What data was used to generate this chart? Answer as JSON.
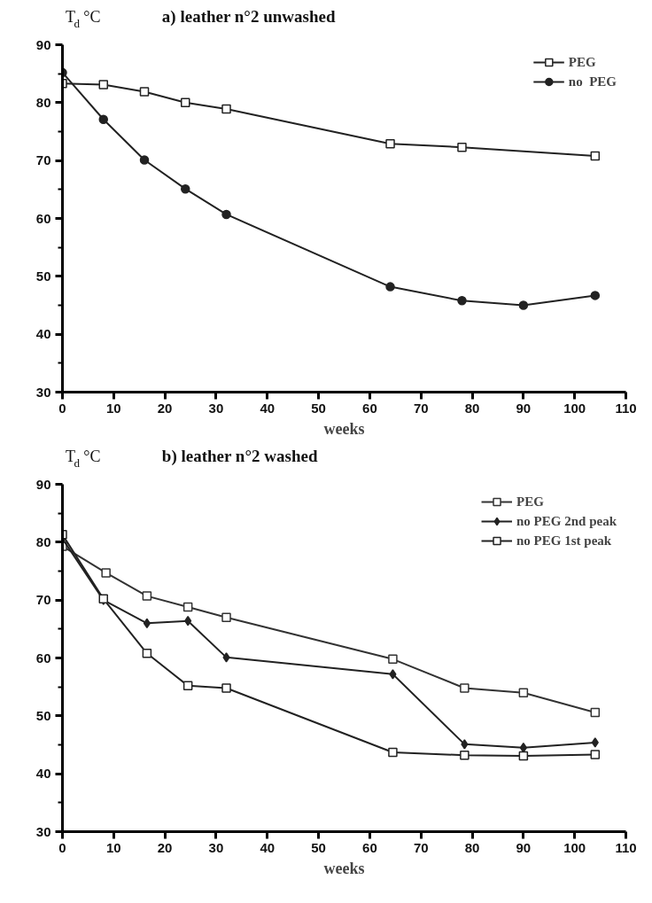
{
  "chart_data": [
    {
      "type": "line",
      "title": "a) leather n°2  unwashed",
      "ylabel": "T$_{d}$ °C",
      "xlabel": "weeks",
      "xlim": [
        0,
        110
      ],
      "ylim": [
        30,
        90
      ],
      "xticks": [
        0,
        10,
        20,
        30,
        40,
        50,
        60,
        70,
        80,
        90,
        100,
        110
      ],
      "yticks": [
        30,
        40,
        50,
        60,
        70,
        80,
        90
      ],
      "grid": false,
      "legend": "top right",
      "series": [
        {
          "name": "PEG",
          "color": "#222222",
          "marker": "square",
          "x": [
            0,
            8,
            16,
            24,
            32,
            64,
            78,
            104
          ],
          "values": [
            83.3,
            83.1,
            81.9,
            80,
            78.9,
            72.9,
            72.3,
            70.8
          ]
        },
        {
          "name": "no  PEG",
          "color": "#222222",
          "marker": "circle",
          "x": [
            0,
            8,
            16,
            24,
            32,
            64,
            78,
            90,
            104
          ],
          "values": [
            85.2,
            77.1,
            70.1,
            65.1,
            60.7,
            48.2,
            45.8,
            45.0,
            46.7
          ]
        }
      ]
    },
    {
      "type": "line",
      "title": "b) leather n°2  washed",
      "ylabel": "T$_{d}$ °C",
      "xlabel": "weeks",
      "xlim": [
        0,
        110
      ],
      "ylim": [
        30,
        90
      ],
      "xticks": [
        0,
        10,
        20,
        30,
        40,
        50,
        60,
        70,
        80,
        90,
        100,
        110
      ],
      "yticks": [
        30,
        40,
        50,
        60,
        70,
        80,
        90
      ],
      "grid": false,
      "legend": "top right",
      "series": [
        {
          "name": "PEG",
          "color": "#333333",
          "marker": "square",
          "x": [
            0,
            8.5,
            16.5,
            24.5,
            32,
            64.5,
            78.5,
            90,
            104
          ],
          "values": [
            79.3,
            74.7,
            70.7,
            68.8,
            67.0,
            59.8,
            54.8,
            54.0,
            50.6
          ]
        },
        {
          "name": "no PEG 2nd peak",
          "color": "#222222",
          "marker": "diamond",
          "x": [
            0,
            8,
            16.5,
            24.5,
            32,
            64.5,
            78.5,
            90,
            104
          ],
          "values": [
            80.6,
            70.0,
            66.0,
            66.4,
            60.1,
            57.2,
            45.1,
            44.5,
            45.4
          ]
        },
        {
          "name": "no PEG 1st peak",
          "color": "#222222",
          "marker": "square",
          "x": [
            0,
            8,
            16.5,
            24.5,
            32,
            64.5,
            78.5,
            90,
            104
          ],
          "values": [
            81.3,
            70.2,
            60.8,
            55.2,
            54.8,
            43.7,
            43.2,
            43.1,
            43.3
          ]
        }
      ]
    }
  ]
}
